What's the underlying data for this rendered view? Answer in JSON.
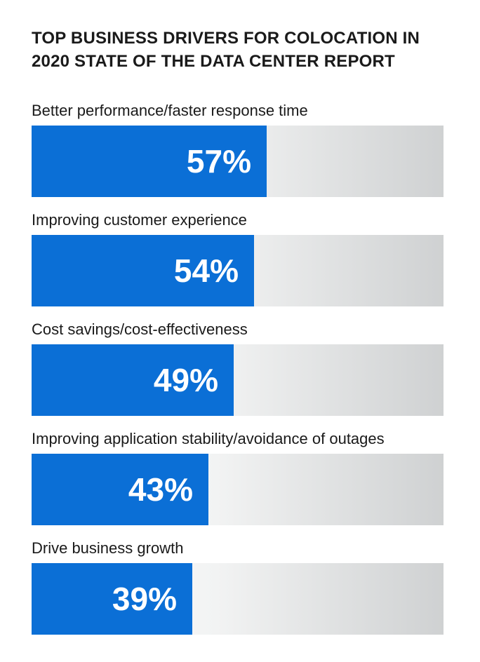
{
  "chart_data": {
    "type": "bar",
    "orientation": "horizontal",
    "title": "TOP BUSINESS DRIVERS FOR COLOCATION IN 2020 STATE OF THE DATA CENTER REPORT",
    "title_lines": [
      "TOP BUSINESS DRIVERS FOR COLOCATION IN",
      "2020 STATE OF THE DATA CENTER REPORT"
    ],
    "xlim": [
      0,
      100
    ],
    "unit": "%",
    "categories": [
      "Better performance/faster response time",
      "Improving customer experience",
      "Cost savings/cost-effectiveness",
      "Improving application stability/avoidance of outages",
      "Drive business growth"
    ],
    "values": [
      57,
      54,
      49,
      43,
      39
    ],
    "value_labels": [
      "57%",
      "54%",
      "49%",
      "43%",
      "39%"
    ],
    "bar_color": "#0b6fd6",
    "track_color": "#d0d2d3",
    "label_color": "#ffffff",
    "grid": false,
    "legend": "none"
  }
}
